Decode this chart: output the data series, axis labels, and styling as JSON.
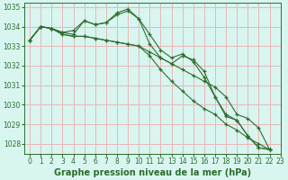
{
  "title": "Graphe pression niveau de la mer (hPa)",
  "bg_color": "#d8f5f0",
  "plot_bg_color": "#d8f5f0",
  "grid_color": "#e8b8b8",
  "line_color": "#2d6e2d",
  "marker": "+",
  "series": [
    [
      1033.3,
      1034.0,
      1033.9,
      1033.7,
      1033.6,
      1034.3,
      1034.1,
      1034.2,
      1034.6,
      1034.8,
      1034.4,
      1033.6,
      1032.8,
      1032.4,
      1032.6,
      1032.2,
      1031.4,
      1030.4,
      1029.4,
      1029.2,
      1028.4,
      1027.8,
      1027.7
    ],
    [
      1033.3,
      1034.0,
      1033.9,
      1033.7,
      1033.8,
      1034.3,
      1034.1,
      1034.2,
      1034.7,
      1034.9,
      1034.4,
      1033.1,
      1032.4,
      1032.1,
      1032.5,
      1032.3,
      1031.7,
      1030.4,
      1029.5,
      1029.2,
      1028.4,
      1027.8,
      1027.7
    ],
    [
      1033.3,
      1034.0,
      1033.9,
      1033.6,
      1033.5,
      1033.5,
      1033.4,
      1033.3,
      1033.2,
      1033.1,
      1033.0,
      1032.7,
      1032.4,
      1032.1,
      1031.8,
      1031.5,
      1031.2,
      1030.9,
      1030.4,
      1029.5,
      1029.3,
      1028.8,
      1027.7
    ],
    [
      1033.3,
      1034.0,
      1033.9,
      1033.6,
      1033.5,
      1033.5,
      1033.4,
      1033.3,
      1033.2,
      1033.1,
      1033.0,
      1032.5,
      1031.8,
      1031.2,
      1030.7,
      1030.2,
      1029.8,
      1029.5,
      1029.0,
      1028.7,
      1028.3,
      1028.0,
      1027.7
    ]
  ],
  "xlim": [
    -0.5,
    23
  ],
  "ylim": [
    1027.5,
    1035.2
  ],
  "yticks": [
    1028,
    1029,
    1030,
    1031,
    1032,
    1033,
    1034,
    1035
  ],
  "xticks": [
    0,
    1,
    2,
    3,
    4,
    5,
    6,
    7,
    8,
    9,
    10,
    11,
    12,
    13,
    14,
    15,
    16,
    17,
    18,
    19,
    20,
    21,
    22,
    23
  ],
  "title_fontsize": 7.0,
  "tick_fontsize": 5.5,
  "figsize": [
    3.2,
    2.0
  ],
  "dpi": 100
}
